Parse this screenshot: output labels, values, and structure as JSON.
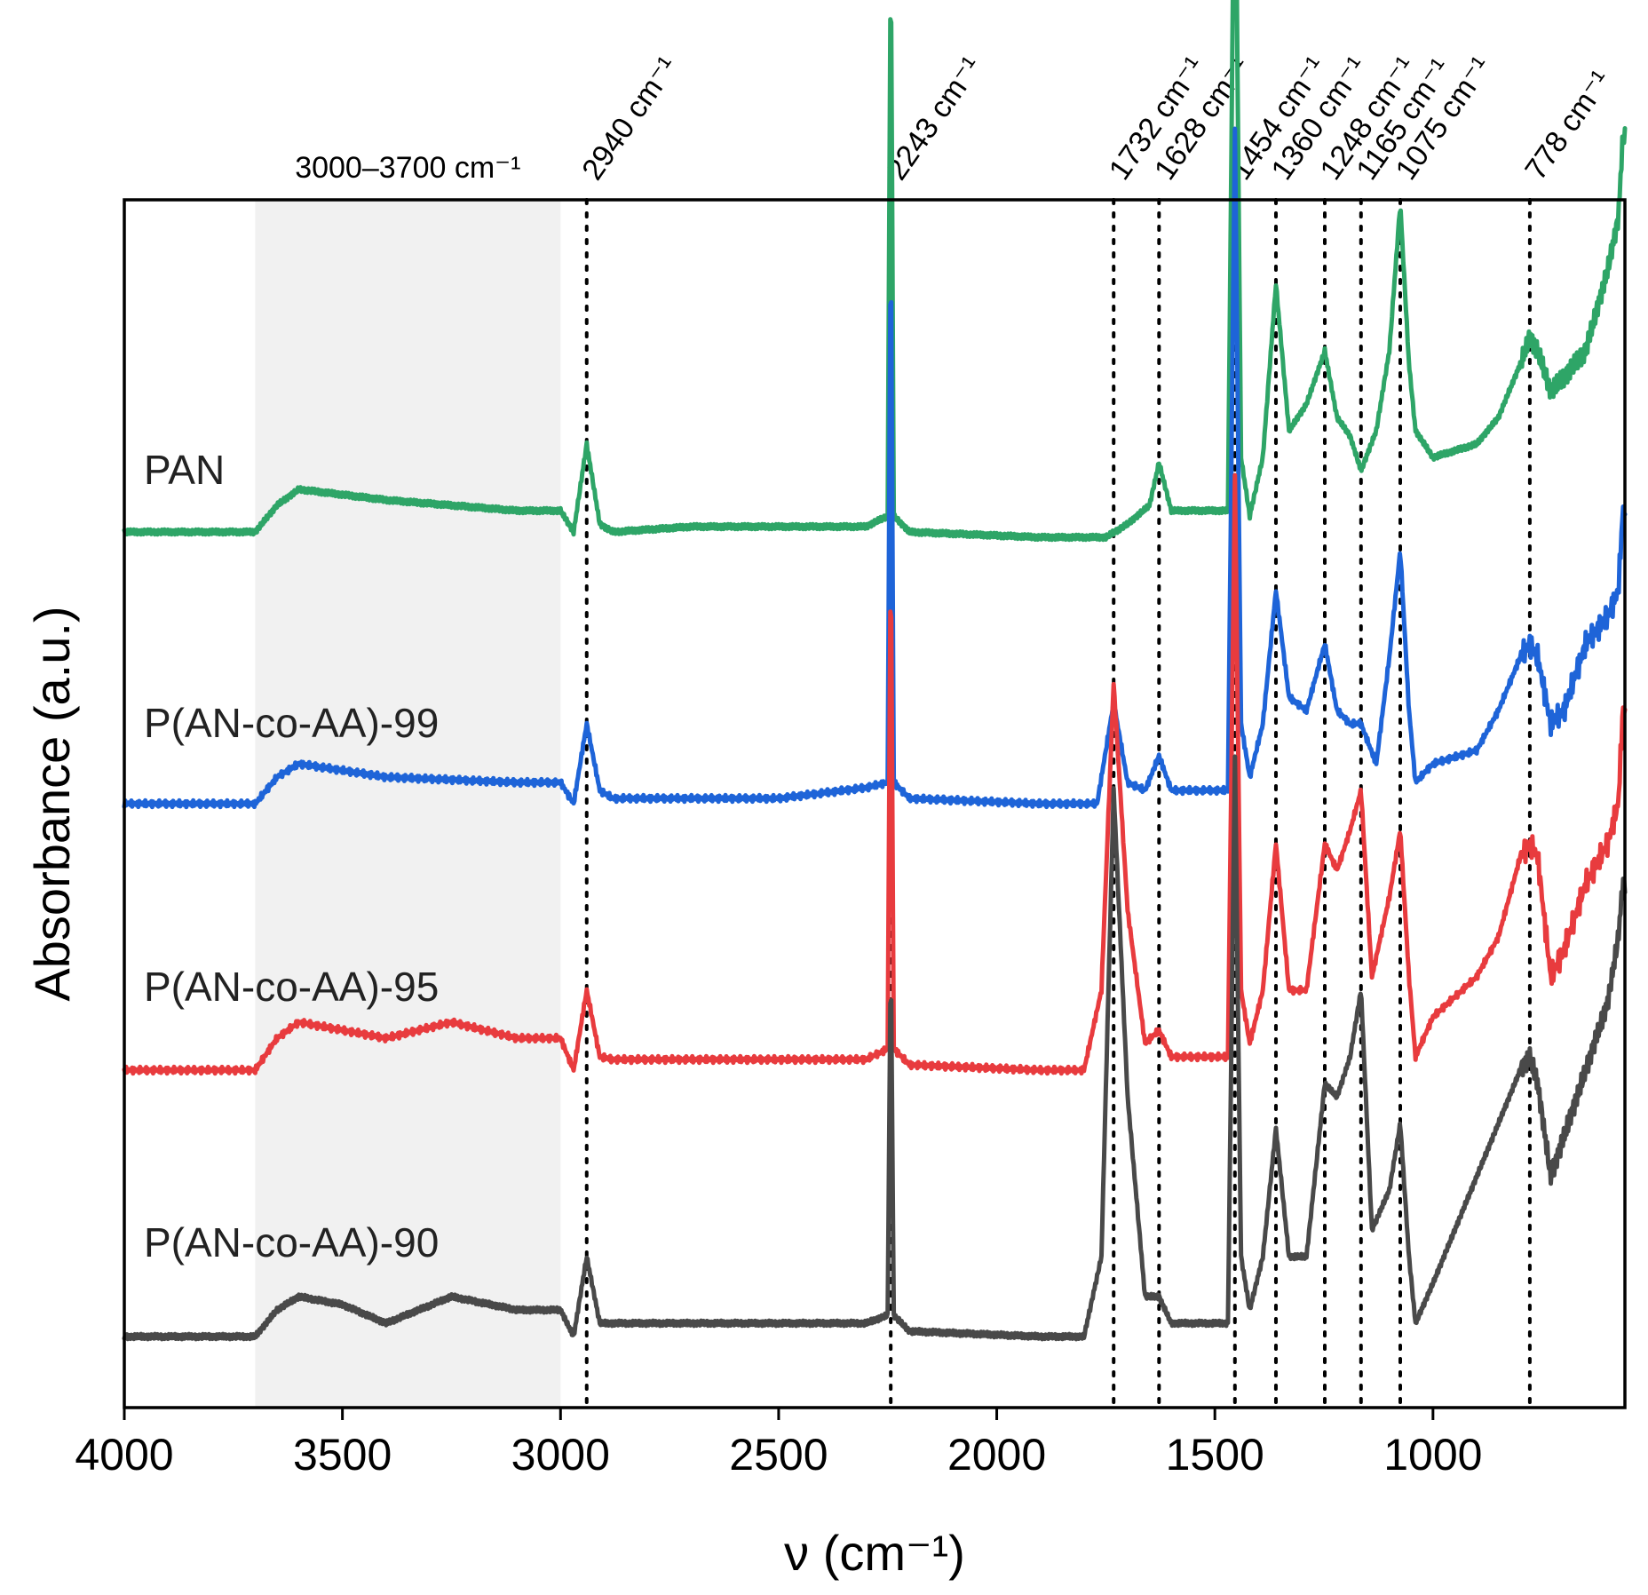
{
  "chart_data": {
    "type": "line",
    "title": "",
    "xlabel": "ν (cm⁻¹)",
    "ylabel": "Absorbance (a.u.)",
    "xlim": [
      4000,
      560
    ],
    "x_reversed": true,
    "y_ticks_shown": false,
    "xticks": [
      4000,
      3500,
      3000,
      2500,
      2000,
      1500,
      1000
    ],
    "xtick_labels": [
      "4000",
      "3500",
      "3000",
      "2500",
      "2000",
      "1500",
      "1000"
    ],
    "shaded_region": {
      "from": 3700,
      "to": 3000,
      "label": "3000–3700 cm⁻¹",
      "color": "#f1f1f1"
    },
    "peak_markers": [
      {
        "wavenumber": 2940,
        "label": "2940 cm⁻¹"
      },
      {
        "wavenumber": 2243,
        "label": "2243 cm⁻¹"
      },
      {
        "wavenumber": 1732,
        "label": "1732 cm⁻¹"
      },
      {
        "wavenumber": 1628,
        "label": "1628 cm⁻¹"
      },
      {
        "wavenumber": 1454,
        "label": "1454 cm⁻¹"
      },
      {
        "wavenumber": 1360,
        "label": "1360 cm⁻¹"
      },
      {
        "wavenumber": 1248,
        "label": "1248 cm⁻¹"
      },
      {
        "wavenumber": 1165,
        "label": "1165 cm⁻¹"
      },
      {
        "wavenumber": 1075,
        "label": "1075 cm⁻¹"
      },
      {
        "wavenumber": 778,
        "label": "778 cm⁻¹"
      }
    ],
    "series": [
      {
        "name": "PAN",
        "color": "#2ea567",
        "baseline": 3.0,
        "points": [
          [
            4000,
            0.02
          ],
          [
            3700,
            0.02
          ],
          [
            3650,
            0.12
          ],
          [
            3600,
            0.18
          ],
          [
            3400,
            0.14
          ],
          [
            3100,
            0.1
          ],
          [
            3000,
            0.1
          ],
          [
            2970,
            0.02
          ],
          [
            2940,
            0.35
          ],
          [
            2910,
            0.05
          ],
          [
            2880,
            0.02
          ],
          [
            2700,
            0.04
          ],
          [
            2500,
            0.04
          ],
          [
            2300,
            0.04
          ],
          [
            2250,
            0.08
          ],
          [
            2243,
            2.25
          ],
          [
            2236,
            0.08
          ],
          [
            2200,
            0.02
          ],
          [
            1900,
            0.0
          ],
          [
            1750,
            0.0
          ],
          [
            1700,
            0.05
          ],
          [
            1650,
            0.12
          ],
          [
            1628,
            0.28
          ],
          [
            1600,
            0.1
          ],
          [
            1520,
            0.1
          ],
          [
            1470,
            0.1
          ],
          [
            1454,
            2.83
          ],
          [
            1440,
            0.3
          ],
          [
            1420,
            0.08
          ],
          [
            1390,
            0.3
          ],
          [
            1360,
            0.95
          ],
          [
            1330,
            0.4
          ],
          [
            1290,
            0.5
          ],
          [
            1248,
            0.7
          ],
          [
            1220,
            0.45
          ],
          [
            1190,
            0.38
          ],
          [
            1165,
            0.25
          ],
          [
            1130,
            0.4
          ],
          [
            1100,
            0.7
          ],
          [
            1075,
            1.25
          ],
          [
            1055,
            0.65
          ],
          [
            1040,
            0.4
          ],
          [
            1000,
            0.3
          ],
          [
            900,
            0.35
          ],
          [
            850,
            0.45
          ],
          [
            800,
            0.65
          ],
          [
            778,
            0.75
          ],
          [
            760,
            0.7
          ],
          [
            730,
            0.55
          ],
          [
            700,
            0.6
          ],
          [
            650,
            0.7
          ],
          [
            600,
            1.0
          ],
          [
            575,
            1.2
          ],
          [
            565,
            1.5
          ]
        ]
      },
      {
        "name": "P(AN-co-AA)-99",
        "color": "#1e64d8",
        "baseline": 2.0,
        "points": [
          [
            4000,
            0.0
          ],
          [
            3700,
            0.0
          ],
          [
            3650,
            0.1
          ],
          [
            3600,
            0.15
          ],
          [
            3400,
            0.1
          ],
          [
            3100,
            0.08
          ],
          [
            3000,
            0.08
          ],
          [
            2970,
            0.0
          ],
          [
            2940,
            0.3
          ],
          [
            2910,
            0.05
          ],
          [
            2880,
            0.02
          ],
          [
            2700,
            0.02
          ],
          [
            2500,
            0.02
          ],
          [
            2300,
            0.06
          ],
          [
            2250,
            0.08
          ],
          [
            2243,
            2.18
          ],
          [
            2236,
            0.08
          ],
          [
            2200,
            0.02
          ],
          [
            1900,
            0.0
          ],
          [
            1770,
            0.0
          ],
          [
            1732,
            0.38
          ],
          [
            1700,
            0.08
          ],
          [
            1660,
            0.05
          ],
          [
            1628,
            0.18
          ],
          [
            1600,
            0.05
          ],
          [
            1520,
            0.05
          ],
          [
            1470,
            0.05
          ],
          [
            1454,
            2.53
          ],
          [
            1440,
            0.3
          ],
          [
            1420,
            0.1
          ],
          [
            1390,
            0.3
          ],
          [
            1360,
            0.8
          ],
          [
            1330,
            0.4
          ],
          [
            1290,
            0.35
          ],
          [
            1248,
            0.6
          ],
          [
            1220,
            0.35
          ],
          [
            1190,
            0.3
          ],
          [
            1165,
            0.3
          ],
          [
            1130,
            0.15
          ],
          [
            1100,
            0.55
          ],
          [
            1075,
            0.95
          ],
          [
            1055,
            0.35
          ],
          [
            1040,
            0.08
          ],
          [
            1000,
            0.15
          ],
          [
            900,
            0.2
          ],
          [
            850,
            0.35
          ],
          [
            800,
            0.55
          ],
          [
            778,
            0.6
          ],
          [
            760,
            0.55
          ],
          [
            730,
            0.3
          ],
          [
            700,
            0.35
          ],
          [
            650,
            0.6
          ],
          [
            600,
            0.7
          ],
          [
            575,
            0.8
          ],
          [
            565,
            1.1
          ]
        ]
      },
      {
        "name": "P(AN-co-AA)-95",
        "color": "#e83b3e",
        "baseline": 1.0,
        "points": [
          [
            4000,
            0.0
          ],
          [
            3700,
            0.0
          ],
          [
            3650,
            0.12
          ],
          [
            3600,
            0.18
          ],
          [
            3400,
            0.12
          ],
          [
            3250,
            0.18
          ],
          [
            3100,
            0.12
          ],
          [
            3000,
            0.12
          ],
          [
            2970,
            0.0
          ],
          [
            2940,
            0.3
          ],
          [
            2910,
            0.05
          ],
          [
            2880,
            0.04
          ],
          [
            2700,
            0.04
          ],
          [
            2500,
            0.04
          ],
          [
            2300,
            0.04
          ],
          [
            2250,
            0.08
          ],
          [
            2243,
            1.98
          ],
          [
            2236,
            0.08
          ],
          [
            2200,
            0.02
          ],
          [
            1900,
            0.0
          ],
          [
            1800,
            0.0
          ],
          [
            1760,
            0.3
          ],
          [
            1732,
            1.45
          ],
          [
            1700,
            0.6
          ],
          [
            1660,
            0.1
          ],
          [
            1628,
            0.15
          ],
          [
            1600,
            0.05
          ],
          [
            1520,
            0.05
          ],
          [
            1470,
            0.05
          ],
          [
            1454,
            2.23
          ],
          [
            1440,
            0.3
          ],
          [
            1420,
            0.1
          ],
          [
            1390,
            0.3
          ],
          [
            1360,
            0.85
          ],
          [
            1330,
            0.3
          ],
          [
            1290,
            0.3
          ],
          [
            1248,
            0.85
          ],
          [
            1220,
            0.75
          ],
          [
            1190,
            0.9
          ],
          [
            1165,
            1.05
          ],
          [
            1140,
            0.35
          ],
          [
            1100,
            0.65
          ],
          [
            1075,
            0.9
          ],
          [
            1055,
            0.35
          ],
          [
            1040,
            0.05
          ],
          [
            1000,
            0.2
          ],
          [
            900,
            0.35
          ],
          [
            850,
            0.5
          ],
          [
            800,
            0.8
          ],
          [
            778,
            0.85
          ],
          [
            760,
            0.8
          ],
          [
            730,
            0.35
          ],
          [
            700,
            0.45
          ],
          [
            650,
            0.7
          ],
          [
            600,
            0.85
          ],
          [
            575,
            1.0
          ],
          [
            565,
            1.35
          ]
        ]
      },
      {
        "name": "P(AN-co-AA)-90",
        "color": "#494949",
        "baseline": 0.0,
        "points": [
          [
            4000,
            0.0
          ],
          [
            3700,
            0.0
          ],
          [
            3650,
            0.1
          ],
          [
            3600,
            0.15
          ],
          [
            3500,
            0.12
          ],
          [
            3400,
            0.05
          ],
          [
            3250,
            0.15
          ],
          [
            3100,
            0.1
          ],
          [
            3000,
            0.1
          ],
          [
            2970,
            0.0
          ],
          [
            2940,
            0.3
          ],
          [
            2910,
            0.05
          ],
          [
            2880,
            0.05
          ],
          [
            2700,
            0.05
          ],
          [
            2500,
            0.05
          ],
          [
            2300,
            0.05
          ],
          [
            2250,
            0.08
          ],
          [
            2243,
            1.45
          ],
          [
            2236,
            0.08
          ],
          [
            2200,
            0.02
          ],
          [
            1900,
            0.0
          ],
          [
            1800,
            0.0
          ],
          [
            1760,
            0.3
          ],
          [
            1732,
            2.05
          ],
          [
            1700,
            0.9
          ],
          [
            1660,
            0.15
          ],
          [
            1628,
            0.15
          ],
          [
            1600,
            0.05
          ],
          [
            1520,
            0.05
          ],
          [
            1470,
            0.05
          ],
          [
            1454,
            2.18
          ],
          [
            1440,
            0.3
          ],
          [
            1420,
            0.1
          ],
          [
            1390,
            0.3
          ],
          [
            1360,
            0.78
          ],
          [
            1330,
            0.3
          ],
          [
            1290,
            0.3
          ],
          [
            1248,
            0.95
          ],
          [
            1220,
            0.9
          ],
          [
            1190,
            1.05
          ],
          [
            1165,
            1.3
          ],
          [
            1140,
            0.4
          ],
          [
            1100,
            0.55
          ],
          [
            1075,
            0.8
          ],
          [
            1055,
            0.3
          ],
          [
            1040,
            0.05
          ],
          [
            1000,
            0.2
          ],
          [
            900,
            0.6
          ],
          [
            850,
            0.8
          ],
          [
            800,
            1.0
          ],
          [
            778,
            1.05
          ],
          [
            760,
            0.95
          ],
          [
            730,
            0.6
          ],
          [
            700,
            0.75
          ],
          [
            650,
            1.0
          ],
          [
            600,
            1.25
          ],
          [
            575,
            1.5
          ],
          [
            565,
            1.7
          ]
        ]
      }
    ]
  }
}
